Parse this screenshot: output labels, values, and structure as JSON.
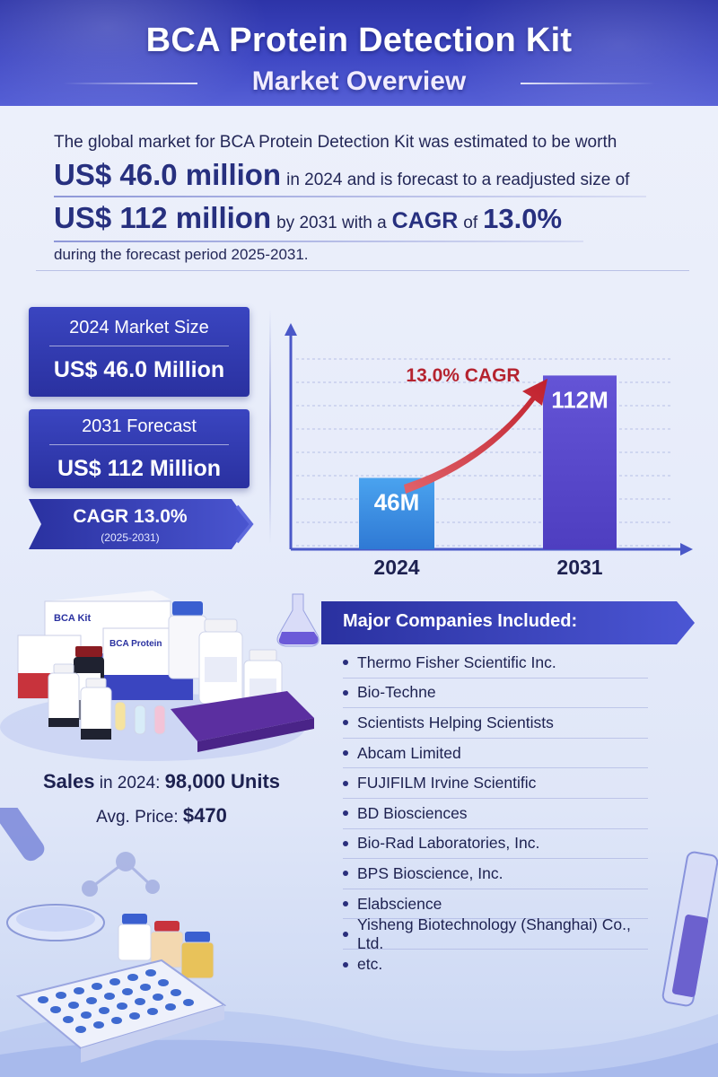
{
  "header": {
    "title_line1": "BCA Protein Detection Kit",
    "title_line2": "Market Overview"
  },
  "summary": {
    "line1": "The global market for BCA Protein Detection Kit was estimated to be worth",
    "value_2024": "US$ 46.0 million",
    "line2_rest": "in 2024 and is forecast to a readjusted size of",
    "value_2031": "US$ 112 million",
    "line3_mid": "by 2031 with a",
    "cagr_word": "CAGR",
    "cagr_of": "of",
    "cagr_value": "13.0%",
    "line4": "during the forecast period 2025-2031."
  },
  "cards": {
    "market_2024_label": "2024 Market Size",
    "market_2024_value": "US$ 46.0 Million",
    "forecast_2031_label": "2031 Forecast",
    "forecast_2031_value": "US$ 112 Million",
    "cagr_label": "CAGR 13.0%",
    "cagr_period": "(2025-2031)"
  },
  "chart_data": {
    "type": "bar",
    "categories": [
      "2024",
      "2031"
    ],
    "values": [
      46,
      112
    ],
    "value_labels": [
      "46M",
      "112M"
    ],
    "annotation": "13.0% CAGR",
    "title": "",
    "xlabel": "",
    "ylabel": "",
    "ylim": [
      0,
      140
    ],
    "grid": true,
    "colors": [
      "#3f8fe0",
      "#5848c8"
    ]
  },
  "products": {
    "box_label_1": "BCA Kit",
    "box_label_2": "BCA Protein"
  },
  "sales": {
    "sales_prefix": "Sales",
    "sales_mid": "in 2024:",
    "sales_value": "98,000 Units",
    "price_label": "Avg. Price:",
    "price_value": "$470"
  },
  "companies": {
    "title": "Major Companies Included:",
    "items": [
      "Thermo Fisher Scientific Inc.",
      "Bio-Techne",
      "Scientists Helping Scientists",
      "Abcam Limited",
      "FUJIFILM Irvine Scientific",
      "BD Biosciences",
      "Bio-Rad Laboratories, Inc.",
      "BPS Bioscience, Inc.",
      "Elabscience",
      "Yisheng Biotechnology (Shanghai) Co., Ltd.",
      "etc."
    ]
  },
  "colors": {
    "brand_dark": "#2a31a0",
    "brand_mid": "#3f48c4",
    "text_dark": "#1d2150",
    "arrow_red": "#c8303a",
    "bar_blue": "#3f8fe0",
    "bar_purple": "#5848c8"
  },
  "icons": [
    "reagent-bottle-icon",
    "test-tube-icon",
    "flask-icon",
    "pipette-icon",
    "molecule-icon",
    "microplate-icon"
  ]
}
